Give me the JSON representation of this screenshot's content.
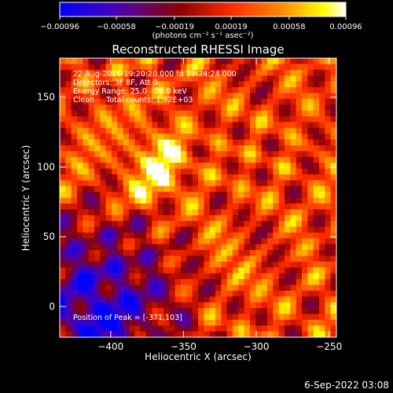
{
  "chart_data": {
    "type": "heatmap",
    "title": "Reconstructed RHESSI Image",
    "xlabel": "Heliocentric X (arcsec)",
    "ylabel": "Heliocentric Y (arcsec)",
    "xlim": [
      -435,
      -245
    ],
    "ylim": [
      -22,
      178
    ],
    "x_ticks": [
      -400,
      -350,
      -300,
      -250
    ],
    "x_tick_labels": [
      "−400",
      "−350",
      "−300",
      "−250"
    ],
    "y_ticks": [
      0,
      50,
      100,
      150
    ],
    "y_tick_labels": [
      "0",
      "50",
      "100",
      "150"
    ],
    "colorbar": {
      "range": [
        -0.00096,
        0.00096
      ],
      "ticks": [
        -0.00096,
        -0.00058,
        -0.00019,
        0.00019,
        0.00058,
        0.00096
      ],
      "tick_labels": [
        "−0.00096",
        "−0.00058",
        "−0.00019",
        "0.00019",
        "0.00058",
        "0.00096"
      ],
      "unit_label": "(photons cm⁻² s⁻¹ asec⁻²)",
      "colors": [
        "#0000ff",
        "#4b00b4",
        "#8b0000",
        "#ff2a00",
        "#ff8c00",
        "#ffff00",
        "#ffffff"
      ]
    },
    "annotations": [
      "22-Aug-2016 19:20:20.000 to 19:24:24.000",
      "Detectors: 3F 8F, Att 0",
      "Energy Range: 25.0 - 50.0 keV",
      "Clean     Total counts: 1.92E+03"
    ],
    "peak_label": "Position of Peak = [-371,103]",
    "peak": [
      -371,
      103
    ],
    "grid": false
  },
  "footer": {
    "date": "6-Sep-2022 03:08"
  }
}
